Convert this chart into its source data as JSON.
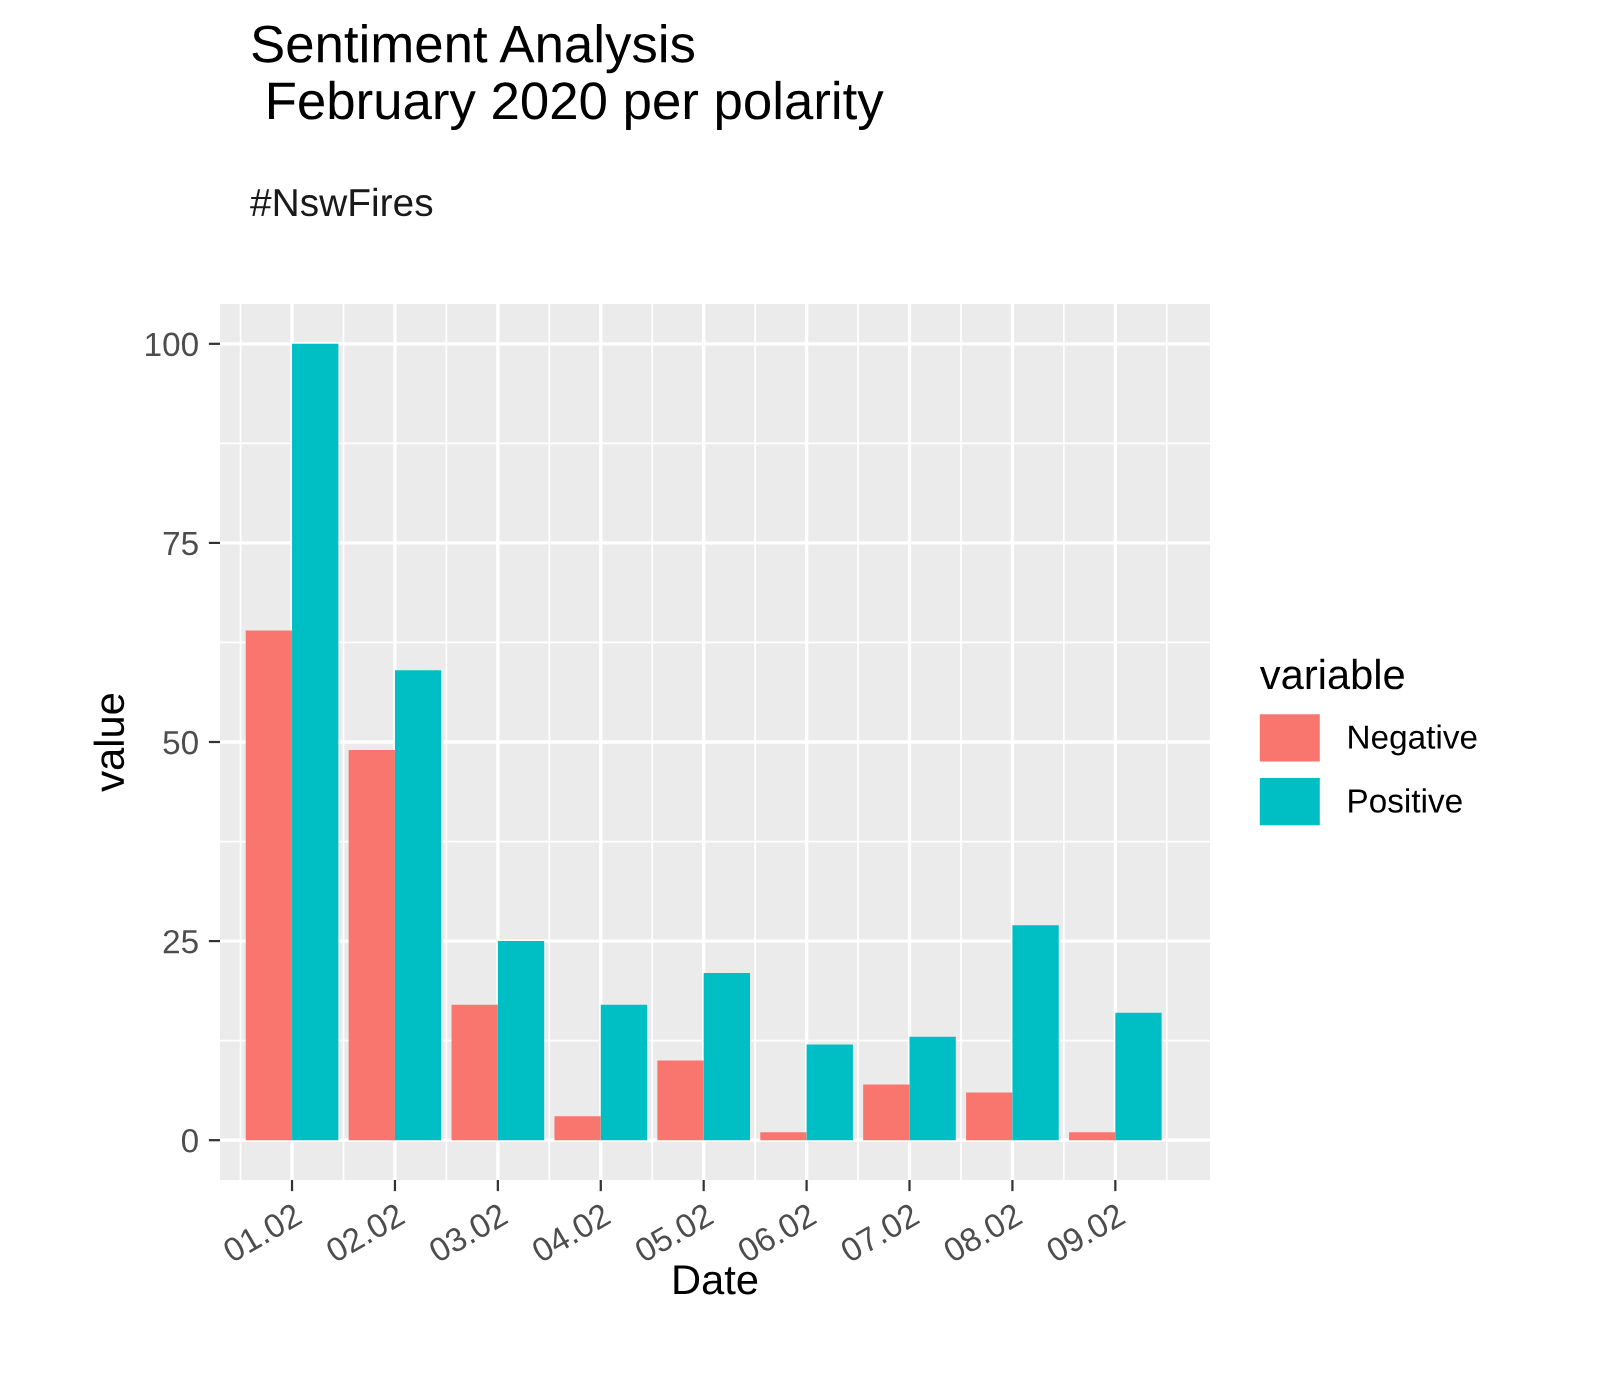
{
  "chart_data": {
    "type": "bar",
    "title": "Sentiment Analysis\n February 2020 per polarity",
    "subtitle": "#NswFires",
    "xlabel": "Date",
    "ylabel": "value",
    "legend_title": "variable",
    "categories": [
      "01.02",
      "02.02",
      "03.02",
      "04.02",
      "05.02",
      "06.02",
      "07.02",
      "08.02",
      "09.02"
    ],
    "series": [
      {
        "name": "Negative",
        "color": "#f8766d",
        "values": [
          64,
          49,
          17,
          3,
          10,
          1,
          7,
          6,
          1
        ]
      },
      {
        "name": "Positive",
        "color": "#00bfc4",
        "values": [
          100,
          59,
          25,
          17,
          21,
          12,
          13,
          27,
          16
        ]
      }
    ],
    "ylim": [
      -5,
      105
    ],
    "yticks": [
      0,
      25,
      50,
      75,
      100
    ],
    "grid": true,
    "legend": "right"
  }
}
